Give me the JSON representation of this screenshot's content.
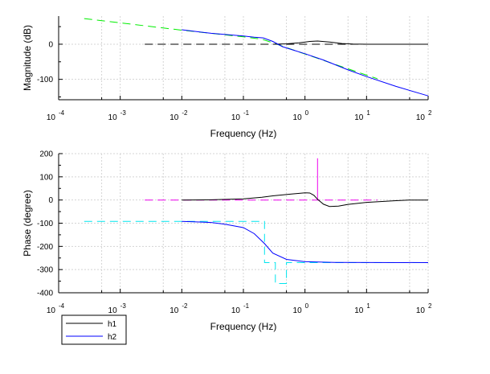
{
  "chart_data": [
    {
      "type": "line",
      "xlabel": "Frequency (Hz)",
      "ylabel": "Magnitude (dB)",
      "xscale": "log",
      "xlim": [
        0.0001,
        100
      ],
      "ylim": [
        -158,
        80
      ],
      "xticks": [
        {
          "base": "10",
          "exp": "-4"
        },
        {
          "base": "10",
          "exp": "-3"
        },
        {
          "base": "10",
          "exp": "-2"
        },
        {
          "base": "10",
          "exp": "-1"
        },
        {
          "base": "10",
          "exp": "0"
        },
        {
          "base": "10",
          "exp": "1"
        },
        {
          "base": "10",
          "exp": "2"
        }
      ],
      "yticks": [
        "0",
        "-100"
      ],
      "ytick_values": [
        0,
        -100
      ],
      "grid": true,
      "series": [
        {
          "color": "#00ee00",
          "dash": true,
          "points": [
            [
              0.00026,
              73
            ],
            [
              0.01,
              40
            ],
            [
              0.1,
              21
            ],
            [
              0.2,
              14
            ],
            [
              0.3,
              4
            ],
            [
              1,
              -28
            ],
            [
              10,
              -88
            ],
            [
              15,
              -98
            ]
          ]
        },
        {
          "color": "#000000",
          "dash": false,
          "points": [
            [
              0.3,
              0
            ],
            [
              0.5,
              1
            ],
            [
              0.8,
              4
            ],
            [
              1.2,
              8
            ],
            [
              1.6,
              9
            ],
            [
              2.5,
              6
            ],
            [
              4,
              2
            ],
            [
              6,
              0.5
            ],
            [
              10,
              0
            ],
            [
              100,
              0
            ]
          ]
        },
        {
          "color": "#000000",
          "dash": true,
          "points": [
            [
              0.0025,
              0
            ],
            [
              15,
              0
            ]
          ]
        },
        {
          "color": "#0000ff",
          "dash": false,
          "points": [
            [
              0.01,
              41
            ],
            [
              0.03,
              31
            ],
            [
              0.1,
              23.5
            ],
            [
              0.15,
              20
            ],
            [
              0.21,
              18
            ],
            [
              0.3,
              8
            ],
            [
              0.43,
              -7
            ],
            [
              0.6,
              -15
            ],
            [
              1,
              -27
            ],
            [
              2,
              -45
            ],
            [
              5,
              -73
            ],
            [
              10,
              -92
            ],
            [
              30,
              -120
            ],
            [
              100,
              -147
            ]
          ]
        }
      ]
    },
    {
      "type": "line",
      "xlabel": "Frequency (Hz)",
      "ylabel": "Phase (degree)",
      "xscale": "log",
      "xlim": [
        0.0001,
        100
      ],
      "ylim": [
        -400,
        200
      ],
      "xticks": [
        {
          "base": "10",
          "exp": "-4"
        },
        {
          "base": "10",
          "exp": "-3"
        },
        {
          "base": "10",
          "exp": "-2"
        },
        {
          "base": "10",
          "exp": "-1"
        },
        {
          "base": "10",
          "exp": "0"
        },
        {
          "base": "10",
          "exp": "1"
        },
        {
          "base": "10",
          "exp": "2"
        }
      ],
      "yticks": [
        "200",
        "100",
        "0",
        "-100",
        "-200",
        "-300",
        "-400"
      ],
      "ytick_values": [
        200,
        100,
        0,
        -100,
        -200,
        -300,
        -400
      ],
      "grid": true,
      "legend": {
        "placement": "bottom-left",
        "entries": [
          {
            "name": "h1",
            "color": "#000000"
          },
          {
            "name": "h2",
            "color": "#0000ff"
          }
        ]
      },
      "series": [
        {
          "color": "#ee00ee",
          "dash": true,
          "points": [
            [
              0.0025,
              0
            ],
            [
              15,
              0
            ]
          ]
        },
        {
          "color": "#ee00ee",
          "dash": false,
          "points": [
            [
              1.6,
              0
            ],
            [
              1.6,
              180
            ]
          ]
        },
        {
          "color": "#000000",
          "dash": false,
          "points": [
            [
              0.01,
              0
            ],
            [
              0.03,
              1
            ],
            [
              0.1,
              5
            ],
            [
              0.2,
              12
            ],
            [
              0.3,
              18
            ],
            [
              0.6,
              26
            ],
            [
              1,
              31
            ],
            [
              1.2,
              30
            ],
            [
              1.4,
              20
            ],
            [
              1.6,
              3
            ],
            [
              2,
              -18
            ],
            [
              2.5,
              -28
            ],
            [
              3.5,
              -26
            ],
            [
              5,
              -19
            ],
            [
              10,
              -10
            ],
            [
              30,
              -3
            ],
            [
              50,
              0
            ],
            [
              100,
              0
            ]
          ]
        },
        {
          "color": "#00e5ee",
          "dash": true,
          "points": [
            [
              0.00026,
              -92
            ],
            [
              0.22,
              -92
            ],
            [
              0.22,
              -270
            ],
            [
              0.33,
              -270
            ],
            [
              0.33,
              -360
            ],
            [
              0.5,
              -360
            ],
            [
              0.5,
              -270
            ],
            [
              100,
              -270
            ]
          ]
        },
        {
          "color": "#0000ff",
          "dash": false,
          "points": [
            [
              0.01,
              -92
            ],
            [
              0.03,
              -97
            ],
            [
              0.05,
              -104
            ],
            [
              0.1,
              -119
            ],
            [
              0.15,
              -145
            ],
            [
              0.22,
              -188
            ],
            [
              0.3,
              -229
            ],
            [
              0.5,
              -256
            ],
            [
              1,
              -266
            ],
            [
              3,
              -269
            ],
            [
              100,
              -270
            ]
          ]
        }
      ]
    }
  ]
}
